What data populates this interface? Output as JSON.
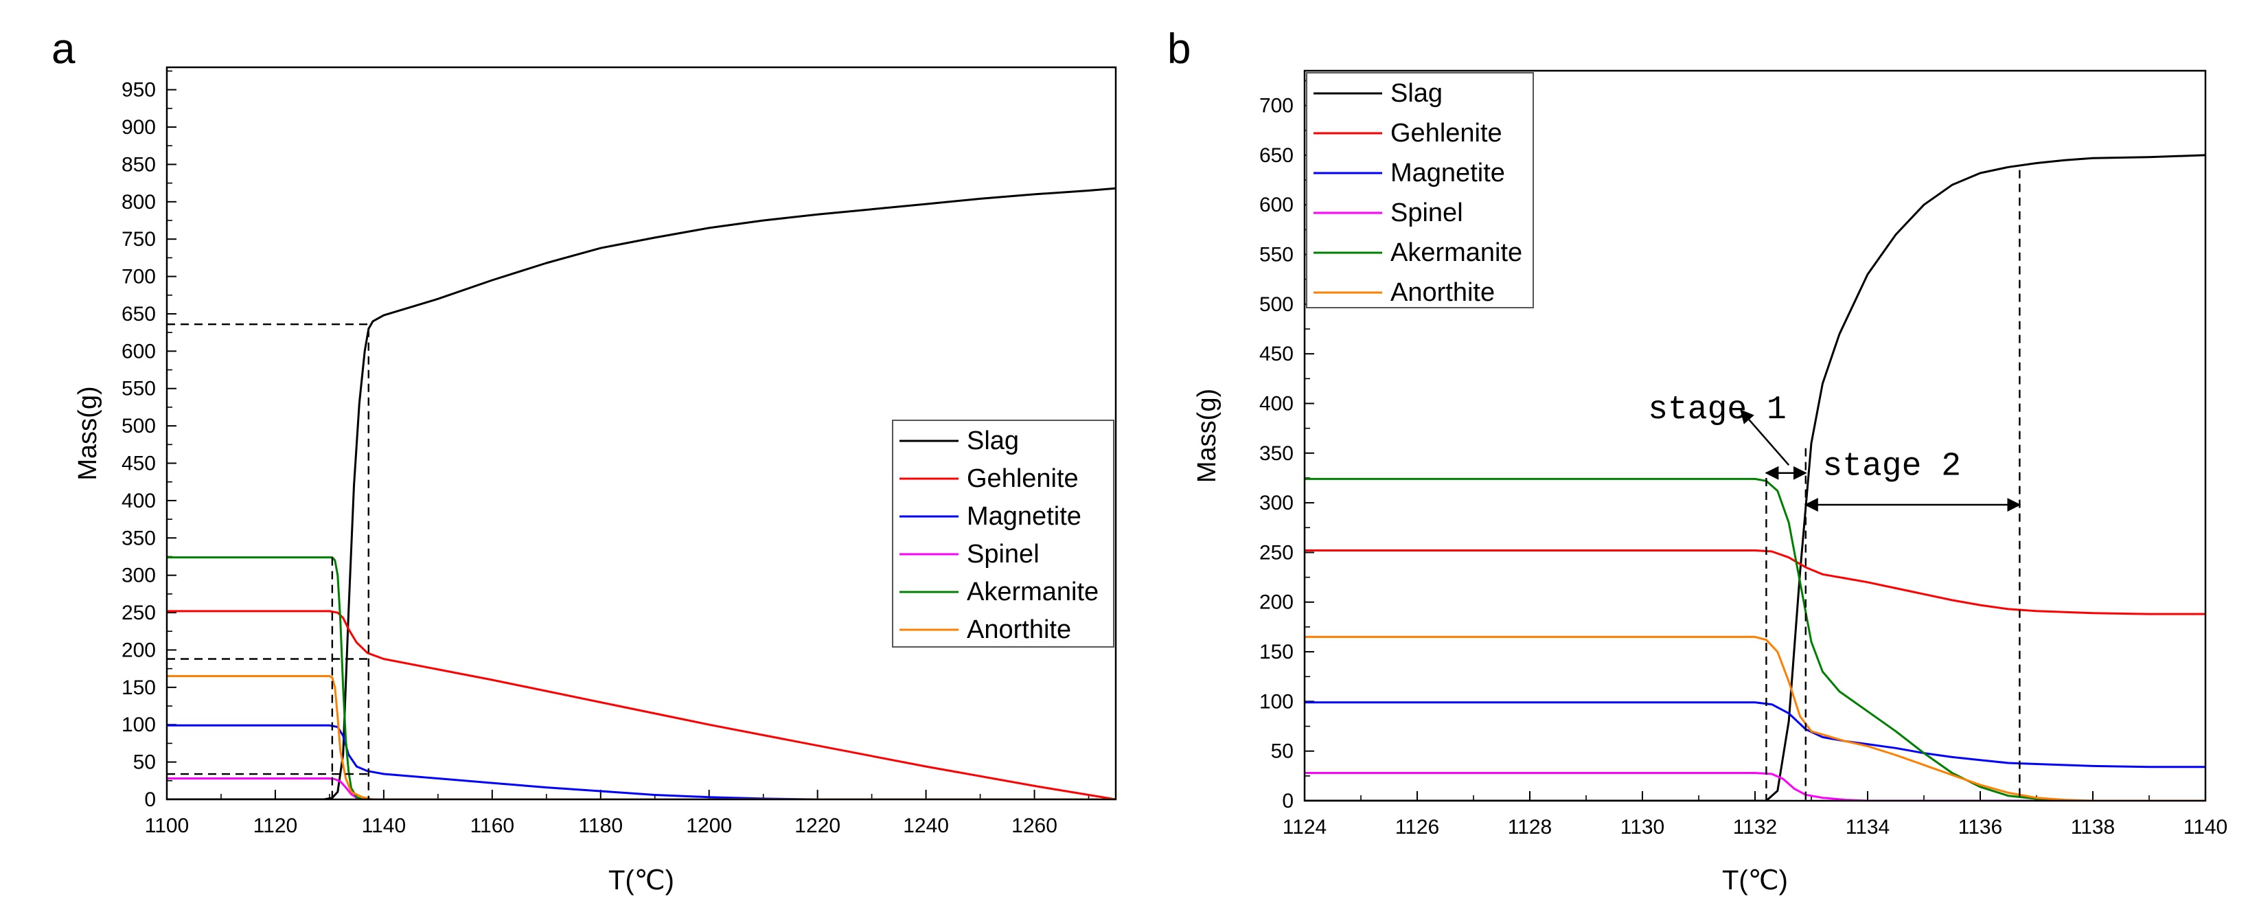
{
  "chart_data": [
    {
      "type": "line",
      "panel_label": "a",
      "xlabel": "T(℃)",
      "ylabel": "Mass(g)",
      "xlim": [
        1100,
        1275
      ],
      "ylim": [
        0,
        980
      ],
      "xticks": [
        1100,
        1120,
        1140,
        1160,
        1180,
        1200,
        1220,
        1240,
        1260
      ],
      "yticks": [
        0,
        50,
        100,
        150,
        200,
        250,
        300,
        350,
        400,
        450,
        500,
        550,
        600,
        650,
        700,
        750,
        800,
        850,
        900,
        950
      ],
      "legend_position": "middle-right",
      "series": [
        {
          "name": "Slag",
          "color": "#000000",
          "x": [
            1100,
            1129,
            1130.5,
            1131.5,
            1132.5,
            1133.5,
            1134.5,
            1135.5,
            1136.5,
            1137.2,
            1138,
            1140,
            1150,
            1160,
            1170,
            1180,
            1190,
            1200,
            1210,
            1220,
            1230,
            1240,
            1250,
            1260,
            1270,
            1275
          ],
          "y": [
            0,
            0,
            2,
            10,
            60,
            250,
            420,
            530,
            600,
            630,
            640,
            648,
            670,
            695,
            718,
            738,
            752,
            765,
            775,
            783,
            790,
            797,
            804,
            810,
            815,
            818
          ]
        },
        {
          "name": "Gehlenite",
          "color": "#ff0000",
          "x": [
            1100,
            1130,
            1131.5,
            1132.5,
            1133.5,
            1135,
            1137,
            1140,
            1160,
            1180,
            1200,
            1220,
            1240,
            1260,
            1275
          ],
          "y": [
            252,
            252,
            250,
            243,
            228,
            210,
            196,
            188,
            160,
            130,
            100,
            72,
            44,
            18,
            0
          ]
        },
        {
          "name": "Magnetite",
          "color": "#0000ff",
          "x": [
            1100,
            1130,
            1131.5,
            1132.5,
            1133.5,
            1135,
            1137,
            1140,
            1150,
            1160,
            1170,
            1180,
            1190,
            1200,
            1210,
            1220,
            1275
          ],
          "y": [
            99,
            99,
            97,
            85,
            60,
            44,
            38,
            34,
            28,
            22,
            16,
            11,
            6,
            3,
            1,
            0,
            0
          ]
        },
        {
          "name": "Spinel",
          "color": "#ff00ff",
          "x": [
            1100,
            1130,
            1131,
            1132,
            1133,
            1134,
            1135,
            1136,
            1275
          ],
          "y": [
            28,
            28,
            27,
            24,
            16,
            7,
            2,
            0,
            0
          ]
        },
        {
          "name": "Akermanite",
          "color": "#008000",
          "x": [
            1100,
            1130.5,
            1131,
            1131.5,
            1132,
            1132.5,
            1133,
            1133.5,
            1134,
            1135,
            1136,
            1275
          ],
          "y": [
            324,
            324,
            320,
            300,
            240,
            150,
            80,
            38,
            15,
            3,
            0,
            0
          ]
        },
        {
          "name": "Anorthite",
          "color": "#ff8000",
          "x": [
            1100,
            1130,
            1130.5,
            1131,
            1131.5,
            1132,
            1133,
            1134,
            1136,
            1138,
            1275
          ],
          "y": [
            165,
            165,
            163,
            150,
            110,
            65,
            28,
            10,
            3,
            0,
            0
          ]
        }
      ]
    },
    {
      "type": "line",
      "panel_label": "b",
      "xlabel": "T(℃)",
      "ylabel": "Mass(g)",
      "xlim": [
        1124,
        1140
      ],
      "ylim": [
        0,
        735
      ],
      "xticks": [
        1124,
        1126,
        1128,
        1130,
        1132,
        1134,
        1136,
        1138,
        1140
      ],
      "yticks": [
        0,
        50,
        100,
        150,
        200,
        250,
        300,
        350,
        400,
        450,
        500,
        550,
        600,
        650,
        700
      ],
      "legend_position": "top-left",
      "annotations": [
        {
          "text": "stage 1",
          "type": "range-arrow",
          "x_range": [
            1132.2,
            1132.9
          ]
        },
        {
          "text": "stage 2",
          "type": "range-arrow",
          "x_range": [
            1132.9,
            1136.7
          ]
        }
      ],
      "series": [
        {
          "name": "Slag",
          "color": "#000000",
          "x": [
            1124,
            1132.2,
            1132.4,
            1132.6,
            1132.8,
            1133,
            1133.2,
            1133.5,
            1134,
            1134.5,
            1135,
            1135.5,
            1136,
            1136.5,
            1137,
            1137.5,
            1138,
            1139,
            1140
          ],
          "y": [
            0,
            0,
            10,
            80,
            230,
            360,
            420,
            470,
            530,
            570,
            600,
            620,
            632,
            638,
            642,
            645,
            647,
            648,
            650
          ]
        },
        {
          "name": "Gehlenite",
          "color": "#ff0000",
          "x": [
            1124,
            1132,
            1132.3,
            1132.6,
            1132.9,
            1133.2,
            1133.6,
            1134,
            1134.5,
            1135,
            1135.5,
            1136,
            1136.5,
            1137,
            1138,
            1139,
            1140
          ],
          "y": [
            252,
            252,
            251,
            245,
            235,
            228,
            224,
            220,
            214,
            208,
            202,
            197,
            193,
            191,
            189,
            188,
            188
          ]
        },
        {
          "name": "Magnetite",
          "color": "#0000ff",
          "x": [
            1124,
            1132,
            1132.3,
            1132.6,
            1132.9,
            1133.2,
            1133.6,
            1134,
            1134.5,
            1135,
            1135.5,
            1136,
            1136.5,
            1137,
            1138,
            1139,
            1140
          ],
          "y": [
            99,
            99,
            97,
            88,
            72,
            64,
            60,
            57,
            53,
            48,
            44,
            41,
            38,
            37,
            35,
            34,
            34
          ]
        },
        {
          "name": "Spinel",
          "color": "#ff00ff",
          "x": [
            1124,
            1132,
            1132.3,
            1132.5,
            1132.7,
            1132.9,
            1133.2,
            1133.6,
            1134,
            1135,
            1140
          ],
          "y": [
            28,
            28,
            27,
            22,
            12,
            6,
            3,
            1,
            0,
            0,
            0
          ]
        },
        {
          "name": "Akermanite",
          "color": "#008000",
          "x": [
            1124,
            1132,
            1132.2,
            1132.4,
            1132.6,
            1132.8,
            1133,
            1133.2,
            1133.5,
            1134,
            1134.5,
            1135,
            1135.5,
            1136,
            1136.5,
            1137,
            1137.5,
            1138,
            1140
          ],
          "y": [
            324,
            324,
            322,
            312,
            280,
            220,
            160,
            130,
            110,
            90,
            70,
            48,
            28,
            14,
            5,
            2,
            0,
            0,
            0
          ]
        },
        {
          "name": "Anorthite",
          "color": "#ff8000",
          "x": [
            1124,
            1132,
            1132.2,
            1132.4,
            1132.6,
            1132.8,
            1133,
            1133.3,
            1133.6,
            1134,
            1134.5,
            1135,
            1135.5,
            1136,
            1136.5,
            1137,
            1137.5,
            1138,
            1140
          ],
          "y": [
            165,
            165,
            162,
            150,
            120,
            85,
            70,
            65,
            60,
            55,
            46,
            36,
            26,
            16,
            8,
            3,
            1,
            0,
            0
          ]
        }
      ]
    }
  ]
}
